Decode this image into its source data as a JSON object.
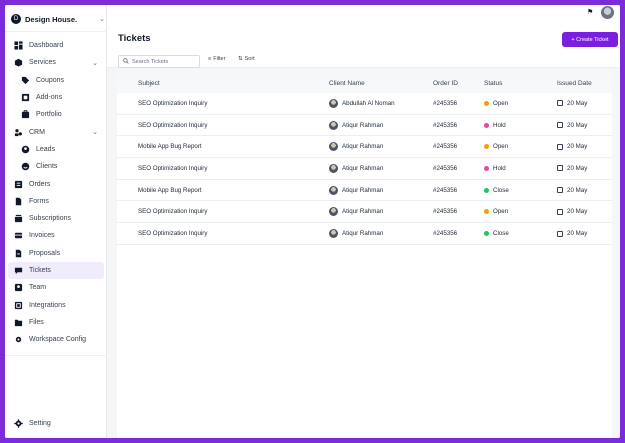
{
  "brand": {
    "name": "Design House.",
    "logo": "D"
  },
  "sidebar": {
    "items": [
      {
        "label": "Dashboard",
        "icon": "grid-icon"
      },
      {
        "label": "Services",
        "icon": "box-icon",
        "expandable": true
      },
      {
        "label": "Coupons",
        "icon": "tag-icon",
        "sub": true
      },
      {
        "label": "Add-ons",
        "icon": "addon-icon",
        "sub": true
      },
      {
        "label": "Portfolio",
        "icon": "portfolio-icon",
        "sub": true
      },
      {
        "label": "CRM",
        "icon": "crm-icon",
        "expandable": true
      },
      {
        "label": "Leads",
        "icon": "user-circle-icon",
        "sub": true
      },
      {
        "label": "Clients",
        "icon": "smile-icon",
        "sub": true
      },
      {
        "label": "Orders",
        "icon": "orders-icon"
      },
      {
        "label": "Forms",
        "icon": "form-icon"
      },
      {
        "label": "Subscriptions",
        "icon": "subscription-icon"
      },
      {
        "label": "Invoices",
        "icon": "invoice-icon"
      },
      {
        "label": "Proposals",
        "icon": "proposal-icon"
      },
      {
        "label": "Tickets",
        "icon": "ticket-icon",
        "active": true
      },
      {
        "label": "Team",
        "icon": "team-icon"
      },
      {
        "label": "Integrations",
        "icon": "integration-icon"
      },
      {
        "label": "Files",
        "icon": "folder-icon"
      },
      {
        "label": "Workspace Config",
        "icon": "gear-icon"
      }
    ],
    "setting": {
      "label": "Setting",
      "icon": "settings-icon"
    }
  },
  "header": {
    "title": "Tickets",
    "create_label": "+ Create Ticket",
    "search_placeholder": "Search Tickets",
    "filter_label": "Filter",
    "sort_label": "Sort"
  },
  "table": {
    "columns": [
      "Subject",
      "Client Name",
      "Order ID",
      "Status",
      "Issued Date"
    ],
    "rows": [
      {
        "subject": "SEO Optimization Inquiry",
        "client": "Abdullah Al Noman",
        "order": "#245356",
        "status": "Open",
        "date": "20 May"
      },
      {
        "subject": "SEO Optimization Inquiry",
        "client": "Atiqur Rahman",
        "order": "#245356",
        "status": "Hold",
        "date": "20 May"
      },
      {
        "subject": "Mobile App Bug Report",
        "client": "Atiqur Rahman",
        "order": "#245356",
        "status": "Open",
        "date": "20 May"
      },
      {
        "subject": "SEO Optimization Inquiry",
        "client": "Atiqur Rahman",
        "order": "#245356",
        "status": "Hold",
        "date": "20 May"
      },
      {
        "subject": "Mobile App Bug Report",
        "client": "Atiqur Rahman",
        "order": "#245356",
        "status": "Close",
        "date": "20 May"
      },
      {
        "subject": "SEO Optimization Inquiry",
        "client": "Atiqur Rahman",
        "order": "#245356",
        "status": "Open",
        "date": "20 May"
      },
      {
        "subject": "SEO Optimization Inquiry",
        "client": "Atiqur Rahman",
        "order": "#245356",
        "status": "Close",
        "date": "20 May"
      }
    ]
  },
  "status_colors": {
    "Open": "#f59e0b",
    "Hold": "#ec4899",
    "Close": "#22c55e"
  },
  "colors": {
    "accent": "#7a1fe0",
    "frame": "#7c2bd9"
  }
}
